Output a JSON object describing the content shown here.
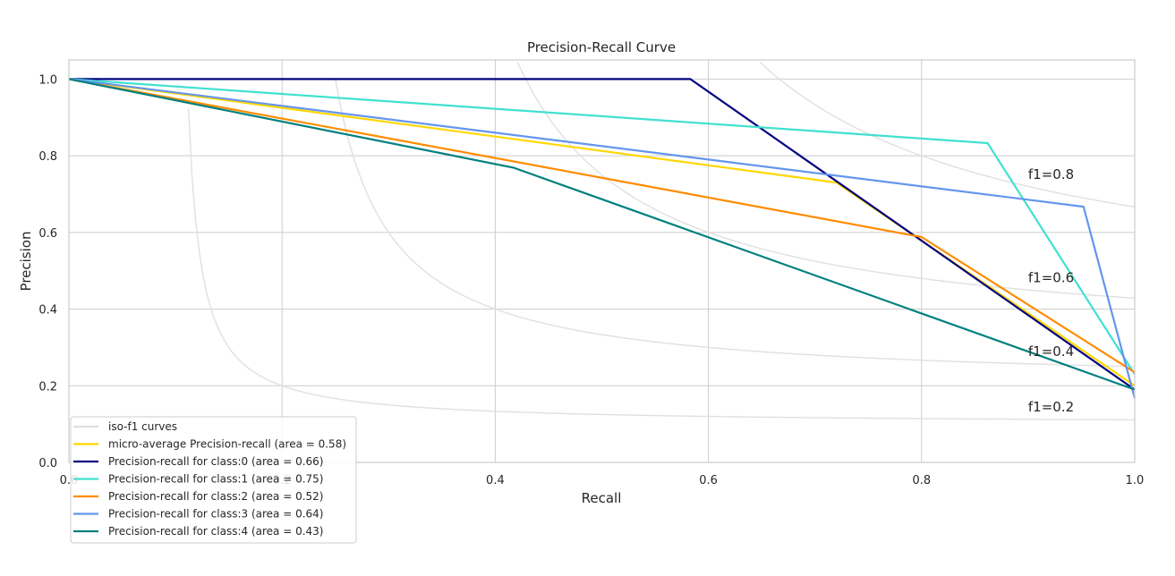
{
  "chart_data": {
    "type": "line",
    "title": "Precision-Recall Curve",
    "xlabel": "Recall",
    "ylabel": "Precision",
    "xlim": [
      0.0,
      1.0
    ],
    "ylim": [
      0.0,
      1.05
    ],
    "x_ticks": [
      "0.0",
      "0.2",
      "0.4",
      "0.6",
      "0.8",
      "1.0"
    ],
    "y_ticks": [
      "0.0",
      "0.2",
      "0.4",
      "0.6",
      "0.8",
      "1.0"
    ],
    "grid": true,
    "legend_position": "lower-left",
    "iso_f1": {
      "legend": "iso-f1 curves",
      "color": "#e0e0e0",
      "values": [
        0.2,
        0.4,
        0.6,
        0.8
      ],
      "labels": [
        "f1=0.2",
        "f1=0.4",
        "f1=0.6",
        "f1=0.8"
      ]
    },
    "series": [
      {
        "name": "micro-average Precision-recall (area = 0.58)",
        "color": "#FFD700",
        "x": [
          0.0,
          0.72,
          1.0
        ],
        "y": [
          1.0,
          0.73,
          0.2
        ]
      },
      {
        "name": "Precision-recall for class:0 (area = 0.66)",
        "color": "#000080",
        "x": [
          0.0,
          0.583,
          1.0
        ],
        "y": [
          1.0,
          1.0,
          0.19
        ]
      },
      {
        "name": "Precision-recall for class:1 (area = 0.75)",
        "color": "#40E0D0",
        "x": [
          0.0,
          0.862,
          1.0
        ],
        "y": [
          1.0,
          0.833,
          0.23
        ]
      },
      {
        "name": "Precision-recall for class:2 (area = 0.52)",
        "color": "#FF8C00",
        "x": [
          0.0,
          0.8,
          1.0
        ],
        "y": [
          1.0,
          0.588,
          0.235
        ]
      },
      {
        "name": "Precision-recall for class:3 (area = 0.64)",
        "color": "#6495ED",
        "x": [
          0.0,
          0.952,
          1.0
        ],
        "y": [
          1.0,
          0.667,
          0.167
        ]
      },
      {
        "name": "Precision-recall for class:4 (area = 0.43)",
        "color": "#008080",
        "x": [
          0.0,
          0.417,
          1.0
        ],
        "y": [
          1.0,
          0.769,
          0.19
        ]
      }
    ]
  }
}
